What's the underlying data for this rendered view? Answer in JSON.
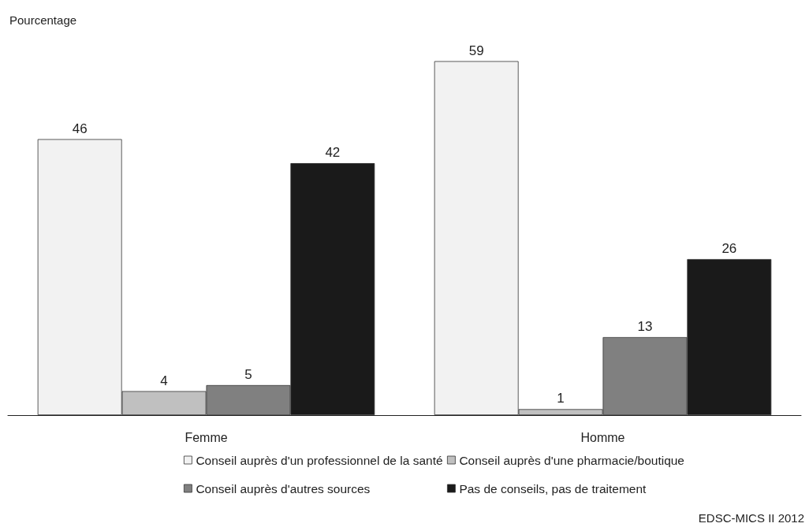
{
  "chart_data": {
    "type": "bar",
    "ylabel": "Pourcentage",
    "categories": [
      "Femme",
      "Homme"
    ],
    "series": [
      {
        "name": "Conseil auprès d'un professionnel de la santé",
        "color": "#f2f2f2",
        "values": [
          46,
          59
        ]
      },
      {
        "name": "Conseil auprès d'une pharmacie/boutique",
        "color": "#c0c0c0",
        "values": [
          4,
          1
        ]
      },
      {
        "name": "Conseil auprès d'autres sources",
        "color": "#808080",
        "values": [
          5,
          13
        ]
      },
      {
        "name": "Pas de conseils, pas de traitement",
        "color": "#1a1a1a",
        "values": [
          42,
          26
        ]
      }
    ],
    "data_labels": true,
    "grid": false,
    "legend": "bottom",
    "annotations": [
      "EDSC-MICS II 2012"
    ]
  }
}
